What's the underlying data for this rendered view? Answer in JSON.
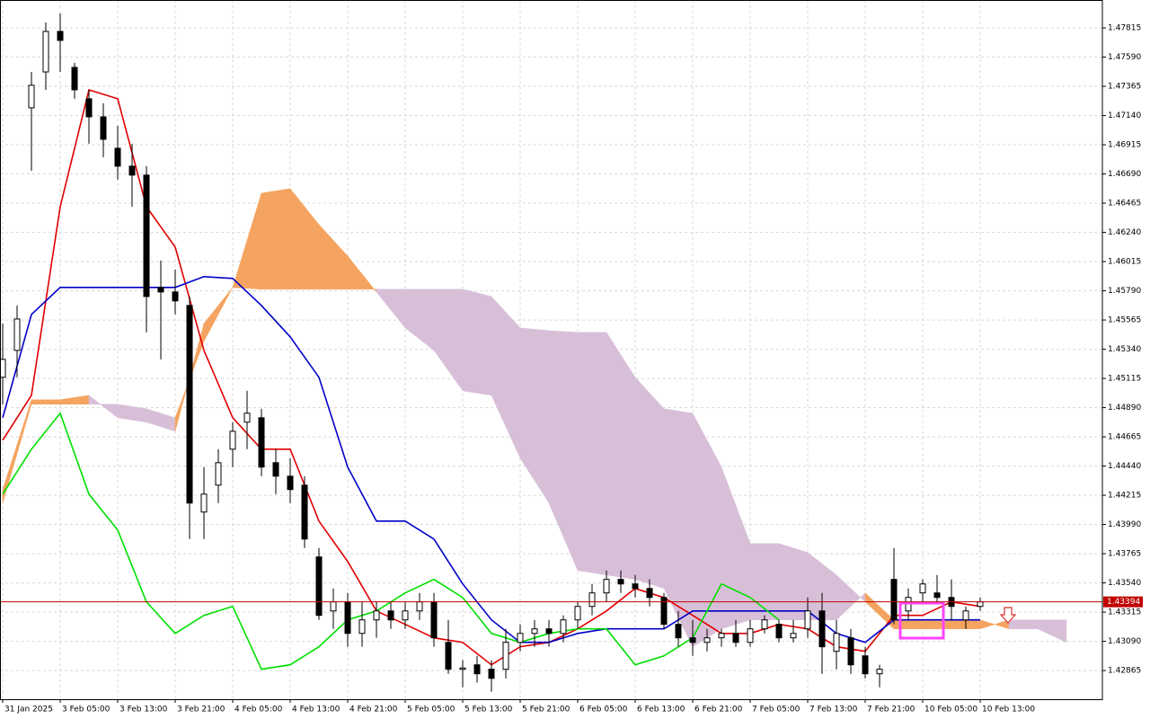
{
  "chart_data": {
    "type": "candlestick",
    "xlim": [
      -0.375,
      153
    ],
    "ylim": [
      1.42644,
      1.4803
    ],
    "grid": true,
    "xticks": [
      {
        "value": 0,
        "label": "31 Jan 2025"
      },
      {
        "value": 8,
        "label": "3 Feb 05:00"
      },
      {
        "value": 16,
        "label": "3 Feb 13:00"
      },
      {
        "value": 24,
        "label": "3 Feb 21:00"
      },
      {
        "value": 32,
        "label": "4 Feb 05:00"
      },
      {
        "value": 40,
        "label": "4 Feb 13:00"
      },
      {
        "value": 48,
        "label": "4 Feb 21:00"
      },
      {
        "value": 56,
        "label": "5 Feb 05:00"
      },
      {
        "value": 64,
        "label": "5 Feb 13:00"
      },
      {
        "value": 72,
        "label": "5 Feb 21:00"
      },
      {
        "value": 80,
        "label": "6 Feb 05:00"
      },
      {
        "value": 88,
        "label": "6 Feb 13:00"
      },
      {
        "value": 96,
        "label": "6 Feb 21:00"
      },
      {
        "value": 104,
        "label": "7 Feb 05:00"
      },
      {
        "value": 112,
        "label": "7 Feb 13:00"
      },
      {
        "value": 120,
        "label": "7 Feb 21:00"
      },
      {
        "value": 128,
        "label": "10 Feb 05:00"
      },
      {
        "value": 136,
        "label": "10 Feb 13:00"
      }
    ],
    "yticks": [
      1.47815,
      {
        "value": 1.4759,
        "label": "1.47590"
      },
      1.47365,
      {
        "value": 1.4714,
        "label": "1.47140"
      },
      1.46915,
      {
        "value": 1.4669,
        "label": "1.46690"
      },
      1.46465,
      {
        "value": 1.4624,
        "label": "1.46240"
      },
      1.46015,
      {
        "value": 1.4579,
        "label": "1.45790"
      },
      1.45565,
      {
        "value": 1.4534,
        "label": "1.45340"
      },
      1.45115,
      {
        "value": 1.4489,
        "label": "1.44890"
      },
      1.44665,
      {
        "value": 1.4444,
        "label": "1.44440"
      },
      1.44215,
      {
        "value": 1.4399,
        "label": "1.43990"
      },
      1.43765,
      {
        "value": 1.4354,
        "label": "1.43540"
      },
      1.43315,
      {
        "value": 1.4309,
        "label": "1.43090"
      },
      1.42865
    ],
    "candles": {
      "up_color": "#ffffff",
      "down_color": "#000000",
      "x": [
        0,
        2,
        4,
        6,
        8,
        10,
        12,
        14,
        16,
        18,
        20,
        22,
        24,
        26,
        28,
        30,
        32,
        34,
        36,
        38,
        40,
        42,
        44,
        46,
        48,
        50,
        52,
        54,
        56,
        58,
        60,
        62,
        64,
        66,
        68,
        70,
        72,
        74,
        76,
        78,
        80,
        82,
        84,
        86,
        88,
        90,
        92,
        94,
        96,
        98,
        100,
        102,
        104,
        106,
        108,
        110,
        112,
        114,
        116,
        118,
        120,
        122,
        124,
        126,
        128,
        130,
        132,
        134,
        136
      ],
      "open": [
        1.45124,
        1.45331,
        1.472,
        1.47476,
        1.47788,
        1.47511,
        1.47269,
        1.4713,
        1.46888,
        1.4675,
        1.46681,
        1.45816,
        1.45781,
        1.45677,
        1.44086,
        1.44293,
        1.4457,
        1.44778,
        1.44812,
        1.44466,
        1.44362,
        1.44293,
        1.4374,
        1.43324,
        1.43394,
        1.43151,
        1.43255,
        1.43324,
        1.43255,
        1.43324,
        1.43394,
        1.43082,
        1.42875,
        1.42909,
        1.42875,
        1.42875,
        1.43082,
        1.43151,
        1.43186,
        1.43151,
        1.43255,
        1.43359,
        1.43463,
        1.43567,
        1.43532,
        1.43497,
        1.43428,
        1.43221,
        1.43117,
        1.43082,
        1.43117,
        1.43151,
        1.43082,
        1.43186,
        1.43221,
        1.43117,
        1.43186,
        1.43324,
        1.43013,
        1.43117,
        1.42978,
        1.4284,
        1.43567,
        1.43324,
        1.43463,
        1.43463,
        1.43428,
        1.43255,
        1.43359
      ],
      "high": [
        1.45539,
        1.45677,
        1.47476,
        1.47857,
        1.47926,
        1.47546,
        1.47338,
        1.47234,
        1.47061,
        1.46923,
        1.4675,
        1.46023,
        1.45954,
        1.45746,
        1.44432,
        1.4457,
        1.44778,
        1.4502,
        1.44881,
        1.4457,
        1.44501,
        1.44362,
        1.43809,
        1.43497,
        1.43463,
        1.43394,
        1.43394,
        1.43394,
        1.43394,
        1.43463,
        1.43463,
        1.43255,
        1.42944,
        1.42978,
        1.42944,
        1.43186,
        1.43221,
        1.43255,
        1.43255,
        1.4329,
        1.43394,
        1.43532,
        1.43636,
        1.43636,
        1.43601,
        1.43567,
        1.43463,
        1.43324,
        1.43255,
        1.43186,
        1.43186,
        1.43255,
        1.43255,
        1.4329,
        1.43255,
        1.43255,
        1.43428,
        1.43463,
        1.43255,
        1.43186,
        1.43048,
        1.42909,
        1.43809,
        1.43497,
        1.43567,
        1.43601,
        1.43567,
        1.43359,
        1.43428
      ],
      "low": [
        1.44916,
        1.45124,
        1.46715,
        1.47338,
        1.47476,
        1.47269,
        1.46923,
        1.46819,
        1.46646,
        1.46438,
        1.4547,
        1.45262,
        1.45608,
        1.43878,
        1.43878,
        1.44155,
        1.44432,
        1.4457,
        1.44362,
        1.44224,
        1.44155,
        1.43809,
        1.43255,
        1.43186,
        1.43048,
        1.43048,
        1.43117,
        1.43186,
        1.43186,
        1.43255,
        1.43048,
        1.4284,
        1.42736,
        1.42771,
        1.42702,
        1.42805,
        1.43013,
        1.43048,
        1.43048,
        1.43082,
        1.43186,
        1.4329,
        1.43394,
        1.43463,
        1.43428,
        1.43359,
        1.43186,
        1.43048,
        1.42978,
        1.43013,
        1.43048,
        1.43048,
        1.43048,
        1.43151,
        1.43082,
        1.43082,
        1.43117,
        1.4284,
        1.42875,
        1.4284,
        1.42805,
        1.42736,
        1.43221,
        1.43255,
        1.43394,
        1.43394,
        1.43255,
        1.43186,
        1.43324
      ],
      "close": [
        1.45262,
        1.45573,
        1.47373,
        1.47788,
        1.47719,
        1.47338,
        1.4713,
        1.46957,
        1.4675,
        1.46681,
        1.45746,
        1.45781,
        1.45712,
        1.44155,
        1.44224,
        1.44466,
        1.44708,
        1.44847,
        1.44432,
        1.44362,
        1.44259,
        1.43878,
        1.4329,
        1.43394,
        1.43151,
        1.43255,
        1.43324,
        1.43255,
        1.43324,
        1.43394,
        1.43117,
        1.42875,
        1.42885,
        1.4284,
        1.42805,
        1.43082,
        1.43151,
        1.43186,
        1.43151,
        1.43255,
        1.43359,
        1.43463,
        1.43567,
        1.43532,
        1.43497,
        1.43428,
        1.43221,
        1.43117,
        1.43082,
        1.43117,
        1.43151,
        1.43082,
        1.43186,
        1.43255,
        1.43117,
        1.43151,
        1.43324,
        1.43048,
        1.43151,
        1.42909,
        1.4284,
        1.42875,
        1.43255,
        1.43428,
        1.43532,
        1.43428,
        1.43359,
        1.43324,
        1.43394
      ]
    },
    "cloud": {
      "bull_color": "#f4a460",
      "bear_color": "#d8bfd8",
      "x": [
        0,
        4,
        8,
        12,
        16,
        20,
        24,
        28,
        32,
        36,
        40,
        44,
        48,
        52,
        56,
        60,
        64,
        68,
        72,
        76,
        80,
        84,
        88,
        92,
        96,
        100,
        104,
        108,
        112,
        116,
        120,
        124,
        128,
        132,
        136,
        140,
        144,
        148
      ],
      "span_a": [
        1.44259,
        1.44951,
        1.44951,
        1.44985,
        1.44812,
        1.44778,
        1.44708,
        1.45539,
        1.45816,
        1.46542,
        1.46577,
        1.463,
        1.46058,
        1.45781,
        1.45504,
        1.45331,
        1.4502,
        1.44985,
        1.44501,
        1.44155,
        1.43636,
        1.43601,
        1.43567,
        1.43497,
        1.43048,
        1.43186,
        1.43255,
        1.43255,
        1.43255,
        1.43255,
        1.43463,
        1.43255,
        1.43255,
        1.43255,
        1.43255,
        1.43186,
        1.43186,
        1.43082
      ],
      "span_b": [
        1.44155,
        1.44916,
        1.44916,
        1.44916,
        1.44916,
        1.44881,
        1.44812,
        1.45401,
        1.45816,
        1.45802,
        1.45802,
        1.45802,
        1.45802,
        1.45802,
        1.45802,
        1.45802,
        1.45802,
        1.45746,
        1.45504,
        1.45483,
        1.4547,
        1.4547,
        1.45124,
        1.44881,
        1.44847,
        1.44432,
        1.43843,
        1.43843,
        1.43774,
        1.43601,
        1.43394,
        1.43186,
        1.43186,
        1.43186,
        1.43186,
        1.43255,
        1.43255,
        1.43255
      ]
    },
    "series": [
      {
        "color": "#e00000",
        "x": [
          0,
          4,
          8,
          12,
          16,
          20,
          24,
          28,
          32,
          36,
          40,
          44,
          48,
          52,
          56,
          60,
          64,
          68,
          72,
          76,
          80,
          84,
          88,
          92,
          96,
          100,
          104,
          108,
          112,
          116,
          120,
          124,
          128,
          132,
          136
        ],
        "values": [
          1.44639,
          1.44985,
          1.46438,
          1.47338,
          1.47269,
          1.46438,
          1.46127,
          1.45331,
          1.44812,
          1.4457,
          1.4457,
          1.44016,
          1.43705,
          1.43324,
          1.43221,
          1.43117,
          1.43082,
          1.42909,
          1.43048,
          1.43082,
          1.43186,
          1.43324,
          1.43497,
          1.43428,
          1.4329,
          1.43151,
          1.43151,
          1.43221,
          1.43186,
          1.43048,
          1.43013,
          1.4329,
          1.4329,
          1.43394,
          1.43359
        ]
      },
      {
        "color": "#0000c8",
        "x": [
          0,
          4,
          8,
          12,
          16,
          20,
          24,
          28,
          32,
          36,
          40,
          44,
          48,
          52,
          56,
          60,
          64,
          68,
          72,
          76,
          80,
          84,
          88,
          92,
          96,
          100,
          104,
          108,
          112,
          116,
          120,
          124,
          128,
          132,
          136
        ],
        "values": [
          1.44812,
          1.45608,
          1.45816,
          1.45816,
          1.45816,
          1.45816,
          1.45816,
          1.45899,
          1.45885,
          1.45677,
          1.45435,
          1.45124,
          1.44432,
          1.44016,
          1.44016,
          1.43878,
          1.43532,
          1.43255,
          1.43082,
          1.43082,
          1.43151,
          1.43186,
          1.43186,
          1.43186,
          1.43324,
          1.43324,
          1.43324,
          1.43324,
          1.43324,
          1.43151,
          1.43082,
          1.43255,
          1.43255,
          1.43255,
          1.43255
        ]
      },
      {
        "color": "#00e000",
        "x": [
          0,
          4,
          8,
          12,
          16,
          20,
          24,
          28,
          32,
          36,
          40,
          44,
          48,
          52,
          56,
          60,
          64,
          68,
          72,
          76,
          80,
          84,
          88,
          92,
          96,
          100,
          104,
          108
        ],
        "values": [
          1.44224,
          1.4457,
          1.44847,
          1.44224,
          1.43947,
          1.43394,
          1.43151,
          1.4329,
          1.43359,
          1.42875,
          1.42909,
          1.43048,
          1.43255,
          1.43324,
          1.43463,
          1.43567,
          1.43428,
          1.43151,
          1.43082,
          1.43151,
          1.43186,
          1.43186,
          1.42909,
          1.42978,
          1.43117,
          1.43532,
          1.43428,
          1.43255
        ]
      }
    ],
    "last_price": 1.43394,
    "last_price_color": "#c00000"
  }
}
